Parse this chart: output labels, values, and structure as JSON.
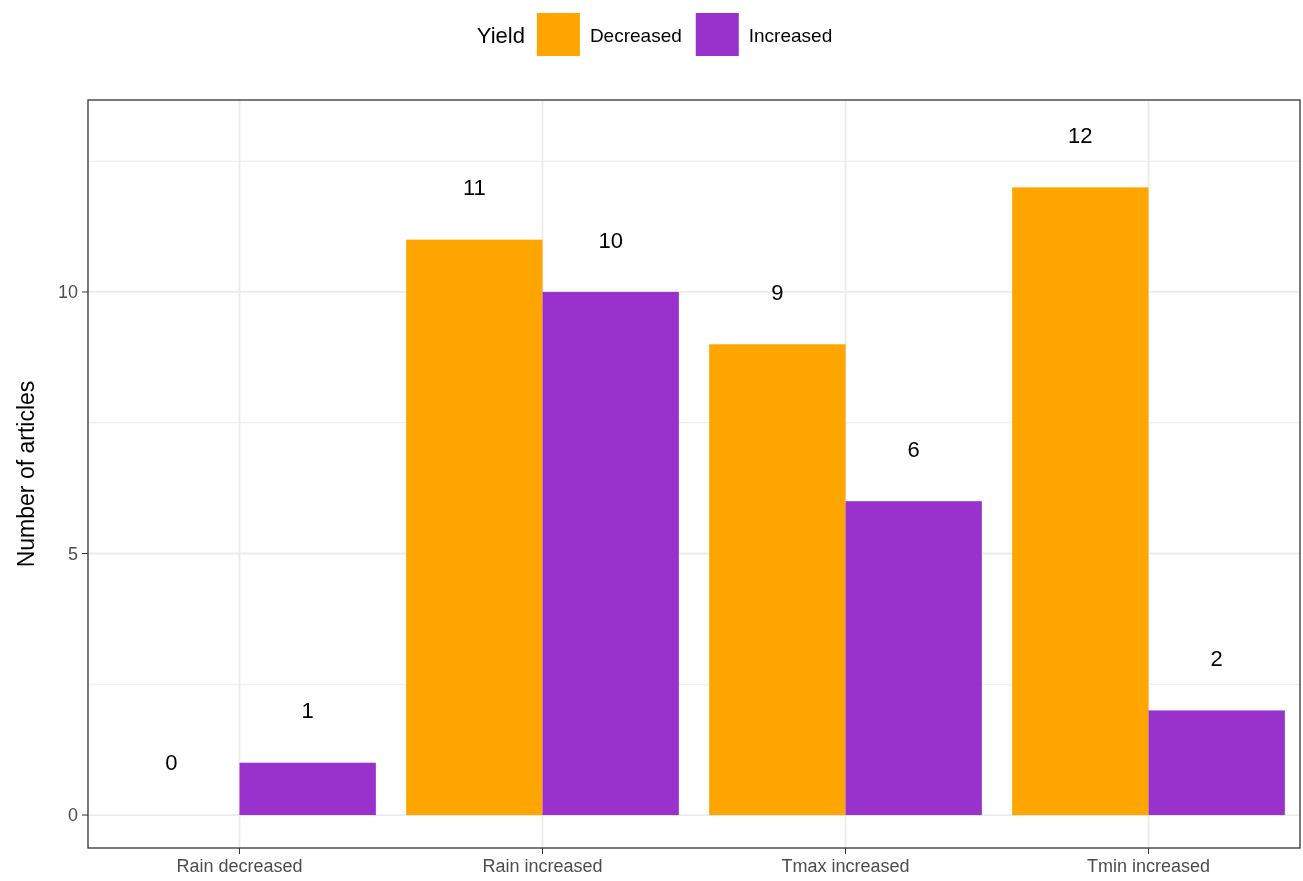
{
  "chart_data": {
    "type": "bar",
    "ylabel": "Number of articles",
    "legend_title": "Yield",
    "categories": [
      "Rain decreased",
      "Rain increased",
      "Tmax increased",
      "Tmin increased"
    ],
    "series": [
      {
        "name": "Decreased",
        "color": "#ffa500",
        "values": [
          0,
          11,
          9,
          12
        ],
        "value_labels": [
          null,
          "11",
          "9",
          "12"
        ]
      },
      {
        "name": "Increased",
        "color": "#9932cc",
        "values": [
          1,
          10,
          6,
          2
        ],
        "value_labels": [
          "1",
          "10",
          "6",
          "2"
        ]
      }
    ],
    "annotations": [
      {
        "text": "0",
        "x": "Rain decreased",
        "y": 1
      }
    ],
    "ylim": [
      -0.63,
      13.67
    ],
    "yticks": [
      0,
      {
        "value": 2.5,
        "label": null
      },
      5,
      {
        "value": 7.5,
        "label": null
      },
      10,
      {
        "value": 12.5,
        "label": null
      }
    ],
    "grid": true,
    "legend": "top"
  }
}
